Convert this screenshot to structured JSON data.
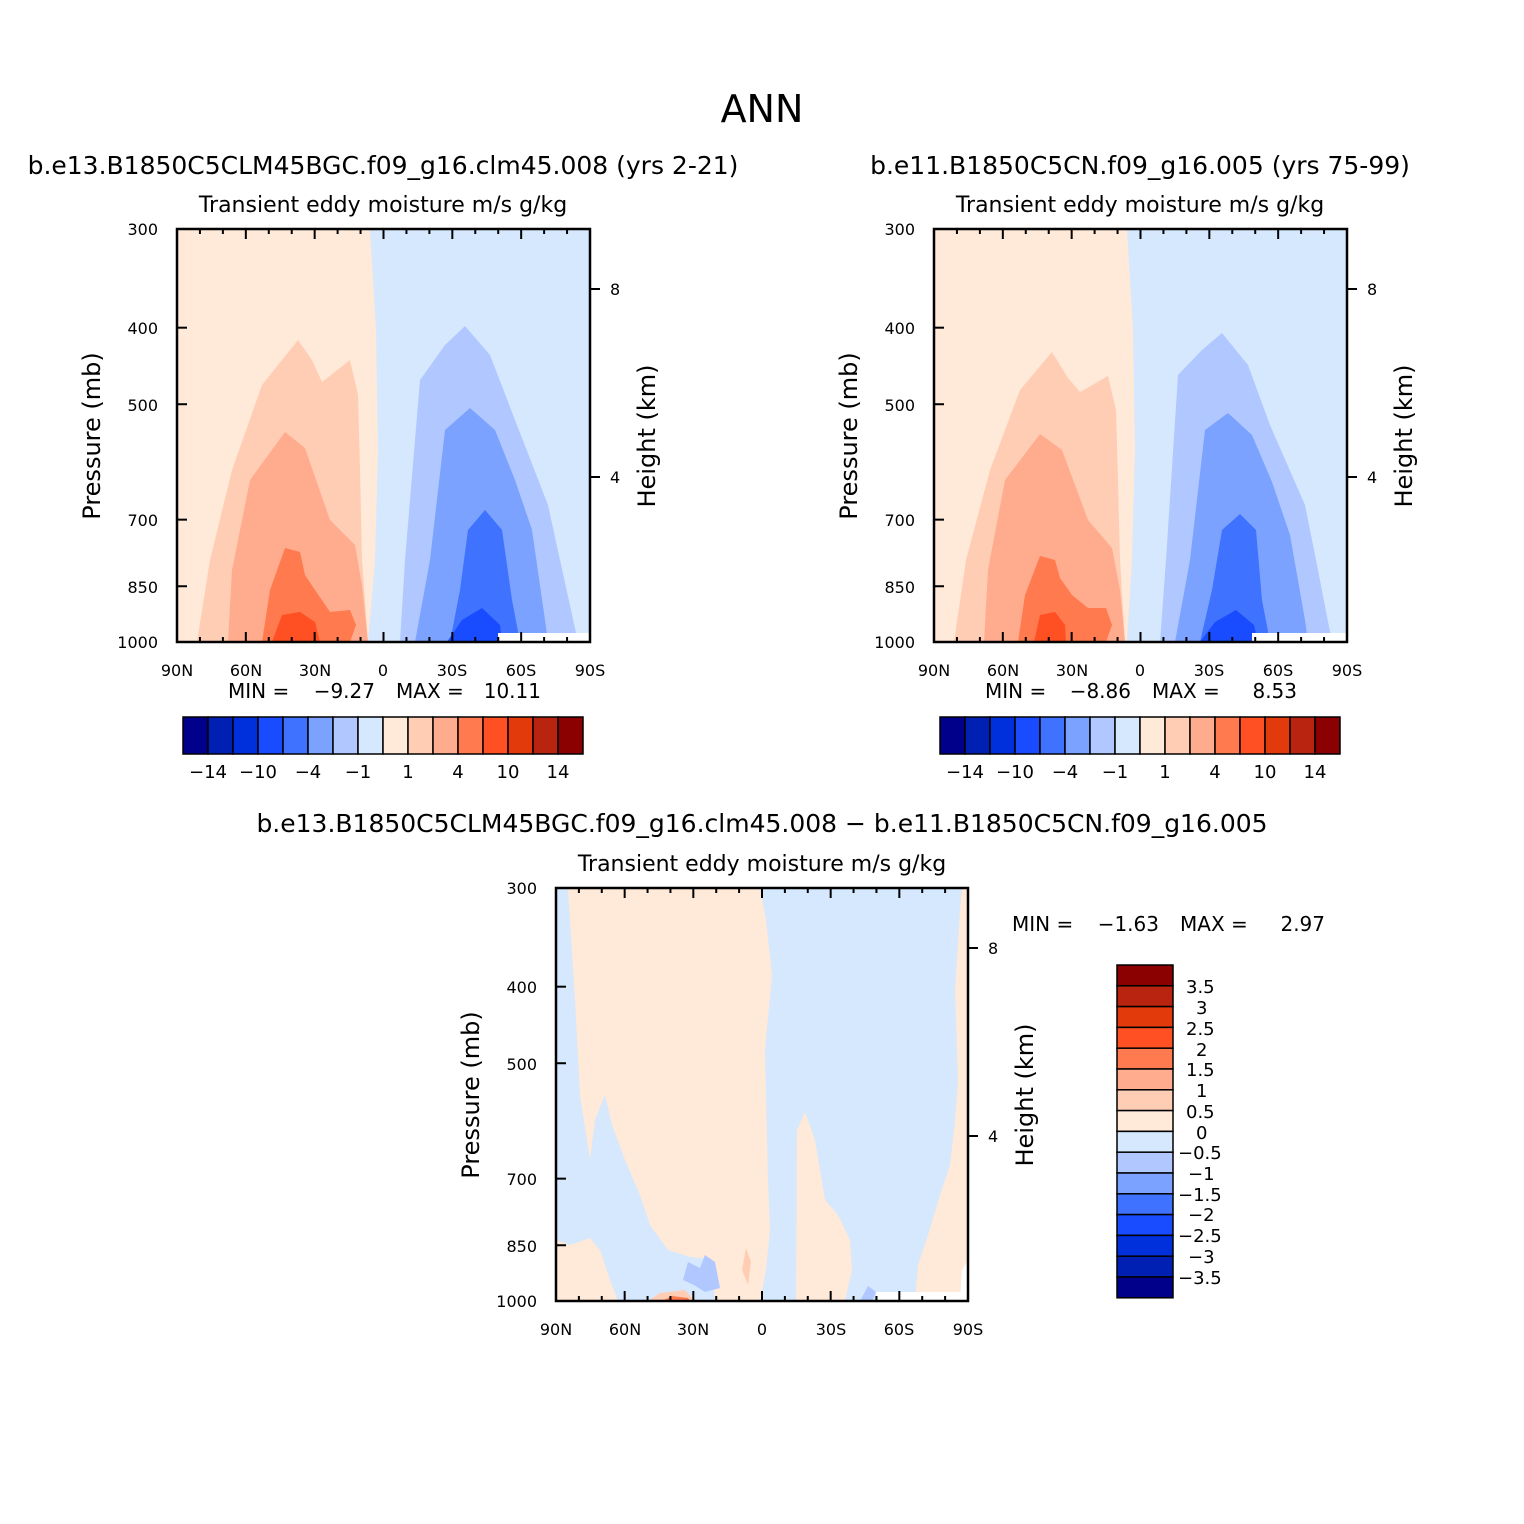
{
  "figure": {
    "title": "ANN"
  },
  "colors": {
    "blue": [
      "#00008b",
      "#0020b4",
      "#0030dc",
      "#1a4cff",
      "#3e72ff",
      "#7ba2ff",
      "#b0c8ff",
      "#d6e8fd"
    ],
    "red": [
      "#ffe9d8",
      "#ffcdb4",
      "#ffac8e",
      "#ff7a4e",
      "#fe5023",
      "#e33a0b",
      "#b8240f",
      "#8b0000"
    ]
  },
  "chart_data": [
    {
      "type": "contour",
      "title": "b.e13.B1850C5CLM45BGC.f09_g16.clm45.008 (yrs 2-21)",
      "subtitle": "Transient eddy moisture m/s g/kg",
      "xlabel": "",
      "ylabel": "Pressure (mb)",
      "ylabel_right": "Height (km)",
      "x_ticks": [
        "90N",
        "60N",
        "30N",
        "0",
        "30S",
        "60S",
        "90S"
      ],
      "y_ticks": [
        "300",
        "400",
        "500",
        "700",
        "850",
        "1000"
      ],
      "y_ticks_right": [
        "8",
        "4"
      ],
      "xlim": [
        "90N",
        "90S"
      ],
      "ylim": [
        1000,
        300
      ],
      "y_scale": "log",
      "stats": {
        "min_label": "MIN =",
        "min": "-9.27",
        "max_label": "MAX =",
        "max": "10.11"
      },
      "colorbar": {
        "orientation": "horizontal",
        "levels": [
          -14,
          -12,
          -10,
          -7,
          -4,
          -2,
          -1,
          0,
          1,
          2,
          4,
          7,
          10,
          12,
          14
        ],
        "labels": [
          "-14",
          "-10",
          "-4",
          "-1",
          "1",
          "4",
          "10",
          "14"
        ]
      }
    },
    {
      "type": "contour",
      "title": "b.e11.B1850C5CN.f09_g16.005 (yrs 75-99)",
      "subtitle": "Transient eddy moisture m/s g/kg",
      "xlabel": "",
      "ylabel": "Pressure (mb)",
      "ylabel_right": "Height (km)",
      "x_ticks": [
        "90N",
        "60N",
        "30N",
        "0",
        "30S",
        "60S",
        "90S"
      ],
      "y_ticks": [
        "300",
        "400",
        "500",
        "700",
        "850",
        "1000"
      ],
      "y_ticks_right": [
        "8",
        "4"
      ],
      "xlim": [
        "90N",
        "90S"
      ],
      "ylim": [
        1000,
        300
      ],
      "y_scale": "log",
      "stats": {
        "min_label": "MIN =",
        "min": "-8.86",
        "max_label": "MAX =",
        "max": "8.53"
      },
      "colorbar": {
        "orientation": "horizontal",
        "levels": [
          -14,
          -12,
          -10,
          -7,
          -4,
          -2,
          -1,
          0,
          1,
          2,
          4,
          7,
          10,
          12,
          14
        ],
        "labels": [
          "-14",
          "-10",
          "-4",
          "-1",
          "1",
          "4",
          "10",
          "14"
        ]
      }
    },
    {
      "type": "contour",
      "title": "b.e13.B1850C5CLM45BGC.f09_g16.clm45.008 - b.e11.B1850C5CN.f09_g16.005",
      "subtitle": "Transient eddy moisture m/s g/kg",
      "xlabel": "",
      "ylabel": "Pressure (mb)",
      "ylabel_right": "Height (km)",
      "x_ticks": [
        "90N",
        "60N",
        "30N",
        "0",
        "30S",
        "60S",
        "90S"
      ],
      "y_ticks": [
        "300",
        "400",
        "500",
        "700",
        "850",
        "1000"
      ],
      "y_ticks_right": [
        "8",
        "4"
      ],
      "xlim": [
        "90N",
        "90S"
      ],
      "ylim": [
        1000,
        300
      ],
      "y_scale": "log",
      "stats": {
        "min_label": "MIN =",
        "min": "-1.63",
        "max_label": "MAX =",
        "max": "2.97"
      },
      "colorbar": {
        "orientation": "vertical",
        "levels": [
          -3.5,
          -3,
          -2.5,
          -2,
          -1.5,
          -1,
          -0.5,
          0,
          0.5,
          1,
          1.5,
          2,
          2.5,
          3,
          3.5
        ],
        "labels": [
          "3.5",
          "3",
          "2.5",
          "2",
          "1.5",
          "1",
          "0.5",
          "0",
          "-0.5",
          "-1",
          "-1.5",
          "-2",
          "-2.5",
          "-3",
          "-3.5"
        ]
      }
    }
  ]
}
